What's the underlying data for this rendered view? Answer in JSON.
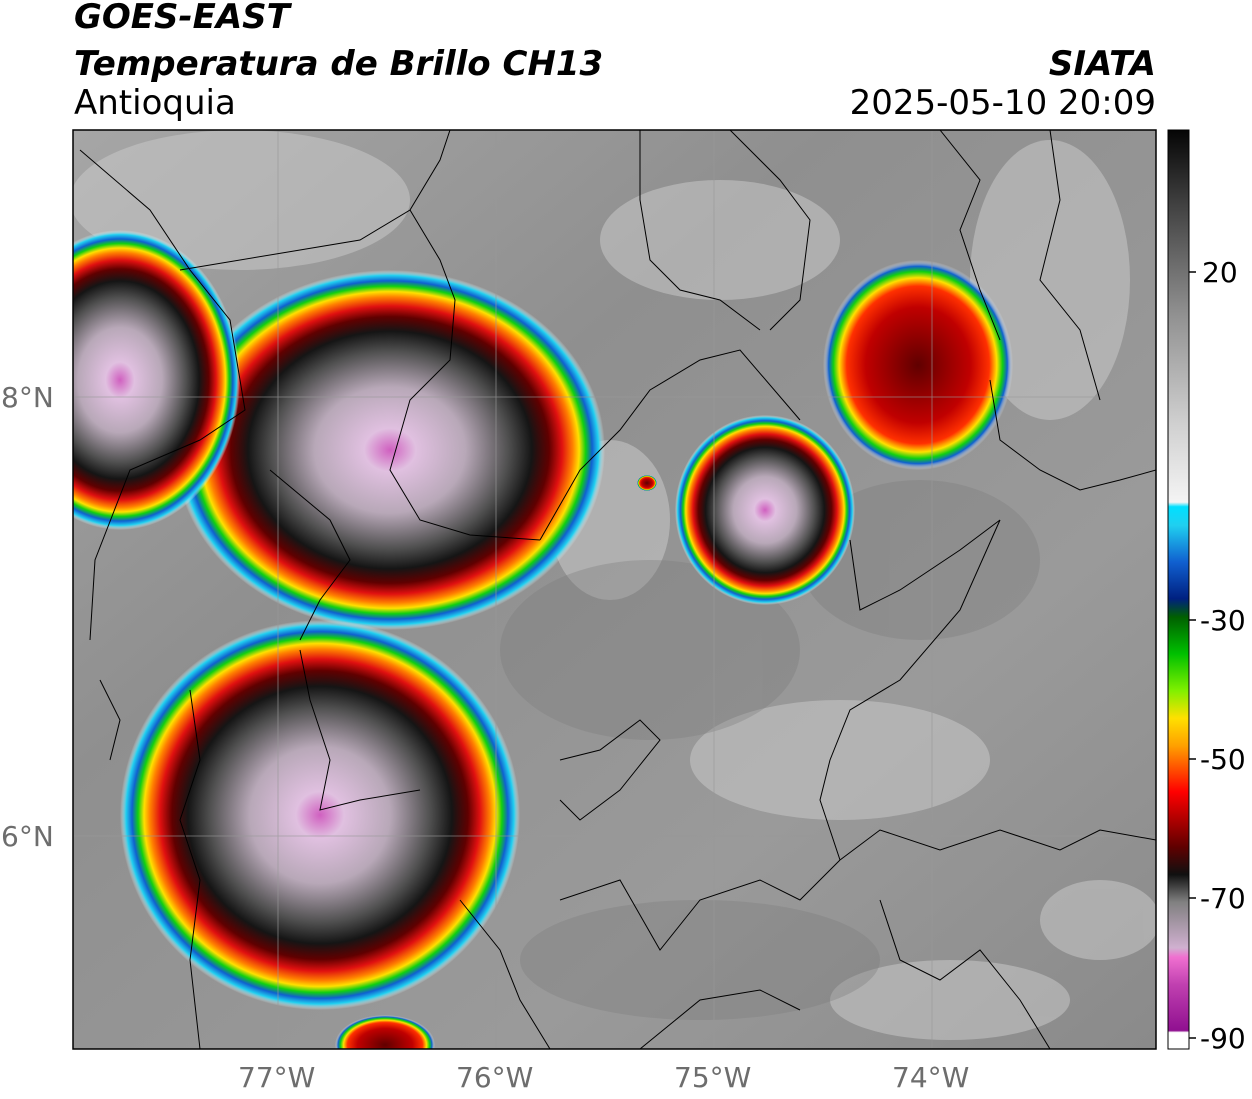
{
  "header": {
    "satellite": "GOES-EAST",
    "product": "Temperatura de Brillo CH13",
    "region": "Antioquia",
    "agency": "SIATA",
    "datetime": "2025-05-10 20:09"
  },
  "axes": {
    "lat_ticks": [
      "8°N",
      "6°N"
    ],
    "lon_ticks": [
      "77°W",
      "76°W",
      "75°W",
      "74°W"
    ]
  },
  "colorbar": {
    "ticks": [
      "20",
      "-30",
      "-50",
      "-70",
      "-90"
    ]
  },
  "colors": {
    "cold_core": "#d060c0",
    "ring_red": "#e01010",
    "ring_yellow": "#ffe000",
    "ring_green": "#10d010",
    "ring_blue": "#1060d0",
    "ring_cyan": "#20d0f0"
  }
}
